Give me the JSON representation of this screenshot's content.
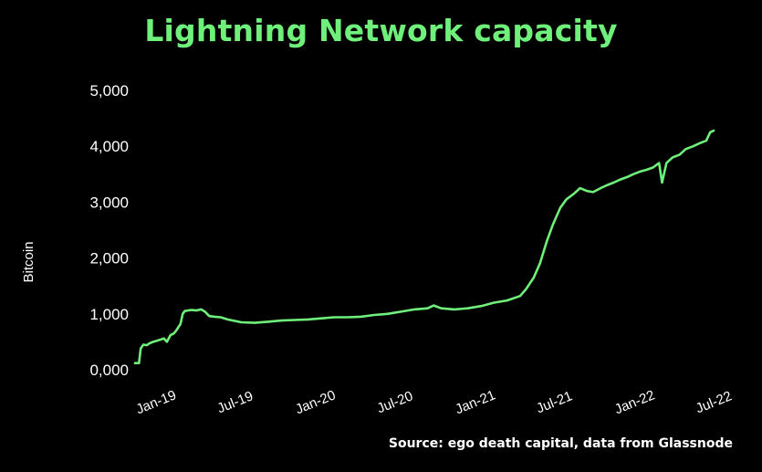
{
  "colors": {
    "background": "#000000",
    "accent": "#6ff07a",
    "text": "#ffffff"
  },
  "chart_data": {
    "type": "line",
    "title": "Lightning Network capacity",
    "xlabel": "",
    "ylabel": "Bitcoin",
    "source": "Source: ego death capital, data from Glassnode",
    "ylim": [
      0,
      5000
    ],
    "yticks": [
      "0,000",
      "1,000",
      "2,000",
      "3,000",
      "4,000",
      "5,000"
    ],
    "xticks": [
      "Jan-19",
      "Jul-19",
      "Jan-20",
      "Jul-20",
      "Jan-21",
      "Jul-21",
      "Jan-22",
      "Jul-22"
    ],
    "grid": false,
    "legend": "none",
    "series": [
      {
        "color": "#6ff07a",
        "x": [
          "2018-12-01",
          "2018-12-08",
          "2018-12-10",
          "2018-12-14",
          "2018-12-20",
          "2018-12-28",
          "2019-01-05",
          "2019-01-12",
          "2019-01-20",
          "2019-01-28",
          "2019-02-05",
          "2019-02-12",
          "2019-02-20",
          "2019-02-28",
          "2019-03-05",
          "2019-03-10",
          "2019-03-15",
          "2019-03-20",
          "2019-03-25",
          "2019-04-01",
          "2019-04-10",
          "2019-04-20",
          "2019-05-01",
          "2019-05-10",
          "2019-05-20",
          "2019-06-01",
          "2019-06-15",
          "2019-07-01",
          "2019-08-01",
          "2019-09-01",
          "2019-10-01",
          "2019-11-01",
          "2019-12-01",
          "2020-01-01",
          "2020-02-01",
          "2020-03-01",
          "2020-04-01",
          "2020-05-01",
          "2020-06-01",
          "2020-07-01",
          "2020-08-01",
          "2020-09-01",
          "2020-10-01",
          "2020-10-15",
          "2020-11-01",
          "2020-12-01",
          "2021-01-01",
          "2021-02-01",
          "2021-03-01",
          "2021-04-01",
          "2021-05-01",
          "2021-05-15",
          "2021-06-01",
          "2021-06-15",
          "2021-07-01",
          "2021-07-15",
          "2021-08-01",
          "2021-08-15",
          "2021-09-01",
          "2021-09-15",
          "2021-10-01",
          "2021-10-15",
          "2021-11-01",
          "2021-11-15",
          "2021-12-01",
          "2021-12-15",
          "2022-01-01",
          "2022-01-15",
          "2022-02-01",
          "2022-02-15",
          "2022-03-01",
          "2022-03-15",
          "2022-03-22",
          "2022-04-01",
          "2022-04-15",
          "2022-05-01",
          "2022-05-15",
          "2022-06-01",
          "2022-06-15",
          "2022-07-01",
          "2022-07-10",
          "2022-07-18"
        ],
        "y": [
          120,
          120,
          120,
          380,
          450,
          440,
          480,
          500,
          520,
          540,
          560,
          500,
          620,
          650,
          700,
          760,
          820,
          1000,
          1050,
          1060,
          1070,
          1060,
          1080,
          1040,
          960,
          950,
          940,
          900,
          850,
          840,
          860,
          880,
          890,
          900,
          920,
          940,
          940,
          950,
          980,
          1000,
          1040,
          1080,
          1100,
          1150,
          1100,
          1080,
          1100,
          1140,
          1200,
          1240,
          1320,
          1450,
          1650,
          1900,
          2300,
          2600,
          2900,
          3050,
          3150,
          3250,
          3200,
          3180,
          3250,
          3300,
          3350,
          3400,
          3450,
          3500,
          3550,
          3580,
          3620,
          3700,
          3350,
          3700,
          3800,
          3850,
          3950,
          4000,
          4050,
          4100,
          4250,
          4280
        ]
      }
    ]
  }
}
